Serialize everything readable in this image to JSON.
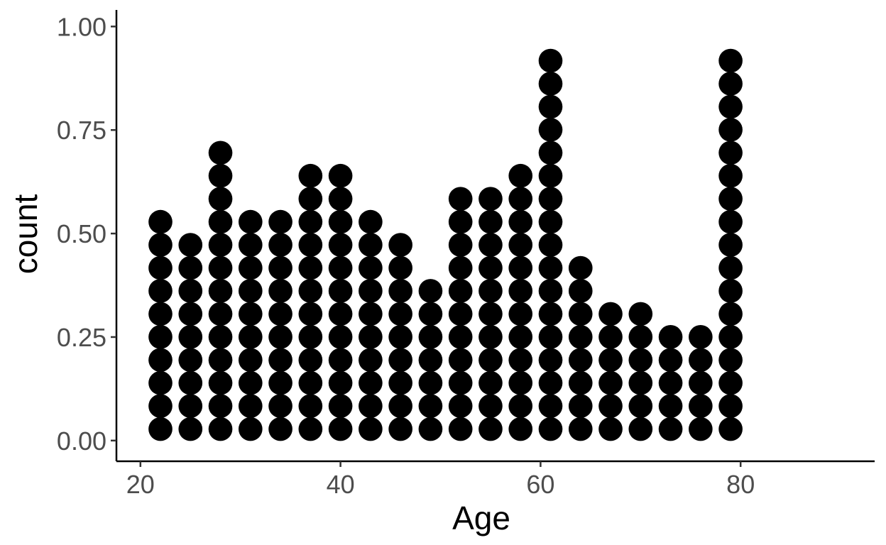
{
  "chart_data": {
    "type": "dotplot",
    "title": "",
    "xlabel": "Age",
    "ylabel": "count",
    "xlim": [
      17.6,
      93.4
    ],
    "ylim": [
      -0.05,
      1.04
    ],
    "x_ticks": [
      20,
      40,
      60,
      80
    ],
    "x_tick_labels": [
      "20",
      "40",
      "60",
      "80"
    ],
    "y_ticks": [
      0,
      0.25,
      0.5,
      0.75,
      1.0
    ],
    "y_tick_labels": [
      "0.00",
      "0.25",
      "0.50",
      "0.75",
      "1.00"
    ],
    "grid": false,
    "legend": "none",
    "dot_color": "#000000",
    "dot_step": 0.0556,
    "x": [
      22,
      25,
      28,
      31,
      34,
      37,
      40,
      43,
      46,
      49,
      52,
      55,
      58,
      61,
      64,
      67,
      70,
      73,
      76,
      79
    ],
    "stack_counts": [
      10,
      9,
      13,
      10,
      10,
      12,
      12,
      10,
      9,
      7,
      11,
      11,
      12,
      17,
      8,
      6,
      6,
      5,
      5,
      17
    ]
  }
}
